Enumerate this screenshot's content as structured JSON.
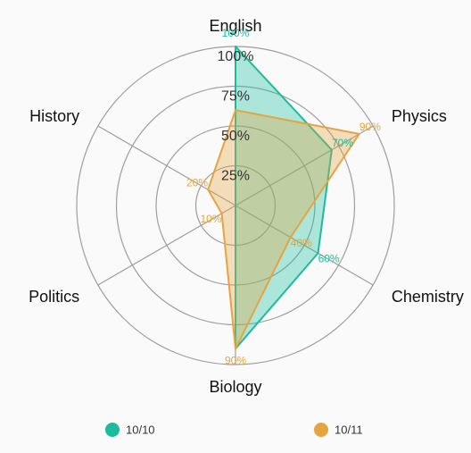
{
  "chart_data": {
    "type": "radar",
    "axes": [
      "English",
      "Physics",
      "Chemistry",
      "Biology",
      "Politics",
      "History"
    ],
    "rings": [
      "25%",
      "50%",
      "75%",
      "100%"
    ],
    "max": 100,
    "series": [
      {
        "name": "10/10",
        "color": "#1abc9c",
        "values": [
          100,
          70,
          60,
          90,
          0,
          0
        ],
        "labels": [
          "100%",
          "70%",
          "60%",
          "",
          "",
          ""
        ]
      },
      {
        "name": "10/11",
        "color": "#e5a43f",
        "values": [
          60,
          90,
          40,
          90,
          10,
          20
        ],
        "labels": [
          "",
          "90%",
          "40%",
          "90%",
          "10%",
          "20%"
        ]
      }
    ],
    "legend_position": "bottom"
  }
}
